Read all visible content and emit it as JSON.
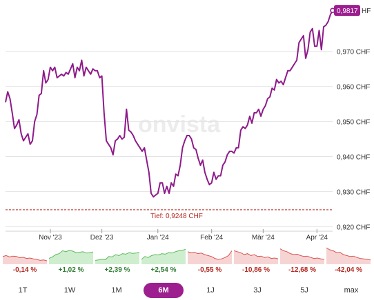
{
  "chart_data": {
    "type": "line",
    "series_color": "#8e1b8a",
    "current_value_label": "0,9817",
    "current_value_suffix": "HF",
    "low_label": "Tief: 0,9248 CHF",
    "low_value": 0.9248,
    "ylim": [
      0.9185,
      0.9835
    ],
    "y_ticks": [
      {
        "value": 0.97,
        "label": "0,970 CHF"
      },
      {
        "value": 0.96,
        "label": "0,960 CHF"
      },
      {
        "value": 0.95,
        "label": "0,950 CHF"
      },
      {
        "value": 0.94,
        "label": "0,940 CHF"
      },
      {
        "value": 0.93,
        "label": "0,930 CHF"
      },
      {
        "value": 0.92,
        "label": "0,920 CHF"
      }
    ],
    "x_ticks": [
      {
        "index": 20,
        "label": "Nov '23"
      },
      {
        "index": 43,
        "label": "Dez '23"
      },
      {
        "index": 68,
        "label": "Jan '24"
      },
      {
        "index": 92,
        "label": "Feb '24"
      },
      {
        "index": 115,
        "label": "Mär '24"
      },
      {
        "index": 139,
        "label": "Apr '24"
      }
    ],
    "watermark": "onvista",
    "values": [
      0.9555,
      0.9585,
      0.9565,
      0.9525,
      0.948,
      0.949,
      0.9505,
      0.9465,
      0.9445,
      0.9455,
      0.9465,
      0.9435,
      0.9445,
      0.95,
      0.952,
      0.9575,
      0.958,
      0.9645,
      0.961,
      0.962,
      0.9655,
      0.9645,
      0.9655,
      0.9625,
      0.963,
      0.9635,
      0.963,
      0.964,
      0.9635,
      0.965,
      0.9665,
      0.9625,
      0.9655,
      0.9645,
      0.9675,
      0.963,
      0.9655,
      0.9645,
      0.9635,
      0.965,
      0.9645,
      0.9645,
      0.9625,
      0.963,
      0.9525,
      0.9445,
      0.9435,
      0.9425,
      0.9405,
      0.9445,
      0.945,
      0.946,
      0.945,
      0.9455,
      0.9535,
      0.9475,
      0.947,
      0.946,
      0.9445,
      0.9435,
      0.9425,
      0.9415,
      0.9425,
      0.939,
      0.9355,
      0.9295,
      0.9285,
      0.929,
      0.9295,
      0.9325,
      0.9325,
      0.9295,
      0.9315,
      0.9295,
      0.9325,
      0.9315,
      0.935,
      0.9345,
      0.9375,
      0.9425,
      0.9445,
      0.946,
      0.946,
      0.945,
      0.9425,
      0.942,
      0.9395,
      0.9375,
      0.939,
      0.9355,
      0.9335,
      0.932,
      0.9325,
      0.9355,
      0.9335,
      0.9345,
      0.9345,
      0.9375,
      0.9385,
      0.9405,
      0.9415,
      0.9415,
      0.941,
      0.9425,
      0.9425,
      0.9475,
      0.9485,
      0.948,
      0.949,
      0.9515,
      0.9495,
      0.9525,
      0.9525,
      0.9535,
      0.9515,
      0.9535,
      0.9545,
      0.9565,
      0.957,
      0.9595,
      0.959,
      0.962,
      0.961,
      0.9615,
      0.9605,
      0.9625,
      0.9645,
      0.9645,
      0.9655,
      0.9665,
      0.9675,
      0.9725,
      0.9735,
      0.9745,
      0.968,
      0.9705,
      0.9755,
      0.9765,
      0.9715,
      0.9715,
      0.976,
      0.9705,
      0.977,
      0.9775,
      0.9785,
      0.9805,
      0.9817
    ]
  },
  "sparklines": [
    {
      "label": "-0,14 %",
      "trend": "neg",
      "points": [
        0.6,
        0.55,
        0.62,
        0.58,
        0.6,
        0.66,
        0.64,
        0.7,
        0.68,
        0.72,
        0.75,
        0.8,
        0.78,
        0.82
      ]
    },
    {
      "label": "+1,02 %",
      "trend": "pos",
      "points": [
        0.7,
        0.62,
        0.5,
        0.45,
        0.3,
        0.35,
        0.28,
        0.32,
        0.4,
        0.38,
        0.35,
        0.42,
        0.4,
        0.36
      ]
    },
    {
      "label": "+2,39 %",
      "trend": "pos",
      "points": [
        0.8,
        0.78,
        0.74,
        0.76,
        0.6,
        0.62,
        0.5,
        0.55,
        0.45,
        0.48,
        0.4,
        0.44,
        0.42,
        0.38
      ]
    },
    {
      "label": "+2,54 %",
      "trend": "pos",
      "points": [
        0.75,
        0.6,
        0.65,
        0.55,
        0.5,
        0.52,
        0.45,
        0.48,
        0.4,
        0.42,
        0.35,
        0.3,
        0.28,
        0.22
      ]
    },
    {
      "label": "-0,55 %",
      "trend": "neg",
      "points": [
        0.35,
        0.4,
        0.38,
        0.45,
        0.42,
        0.5,
        0.55,
        0.6,
        0.7,
        0.75,
        0.72,
        0.65,
        0.55,
        0.3
      ]
    },
    {
      "label": "-10,86 %",
      "trend": "neg",
      "points": [
        0.3,
        0.35,
        0.4,
        0.5,
        0.45,
        0.55,
        0.5,
        0.6,
        0.58,
        0.65,
        0.62,
        0.7,
        0.68,
        0.72
      ]
    },
    {
      "label": "-12,68 %",
      "trend": "neg",
      "points": [
        0.2,
        0.3,
        0.35,
        0.45,
        0.5,
        0.48,
        0.55,
        0.6,
        0.58,
        0.65,
        0.7,
        0.68,
        0.72,
        0.75
      ]
    },
    {
      "label": "-42,04 %",
      "trend": "neg",
      "points": [
        0.15,
        0.25,
        0.3,
        0.4,
        0.38,
        0.5,
        0.55,
        0.6,
        0.58,
        0.65,
        0.7,
        0.72,
        0.75,
        0.78
      ]
    }
  ],
  "tabs": [
    {
      "label": "1T",
      "active": false
    },
    {
      "label": "1W",
      "active": false
    },
    {
      "label": "1M",
      "active": false
    },
    {
      "label": "6M",
      "active": true
    },
    {
      "label": "1J",
      "active": false
    },
    {
      "label": "3J",
      "active": false
    },
    {
      "label": "5J",
      "active": false
    },
    {
      "label": "max",
      "active": false
    }
  ]
}
